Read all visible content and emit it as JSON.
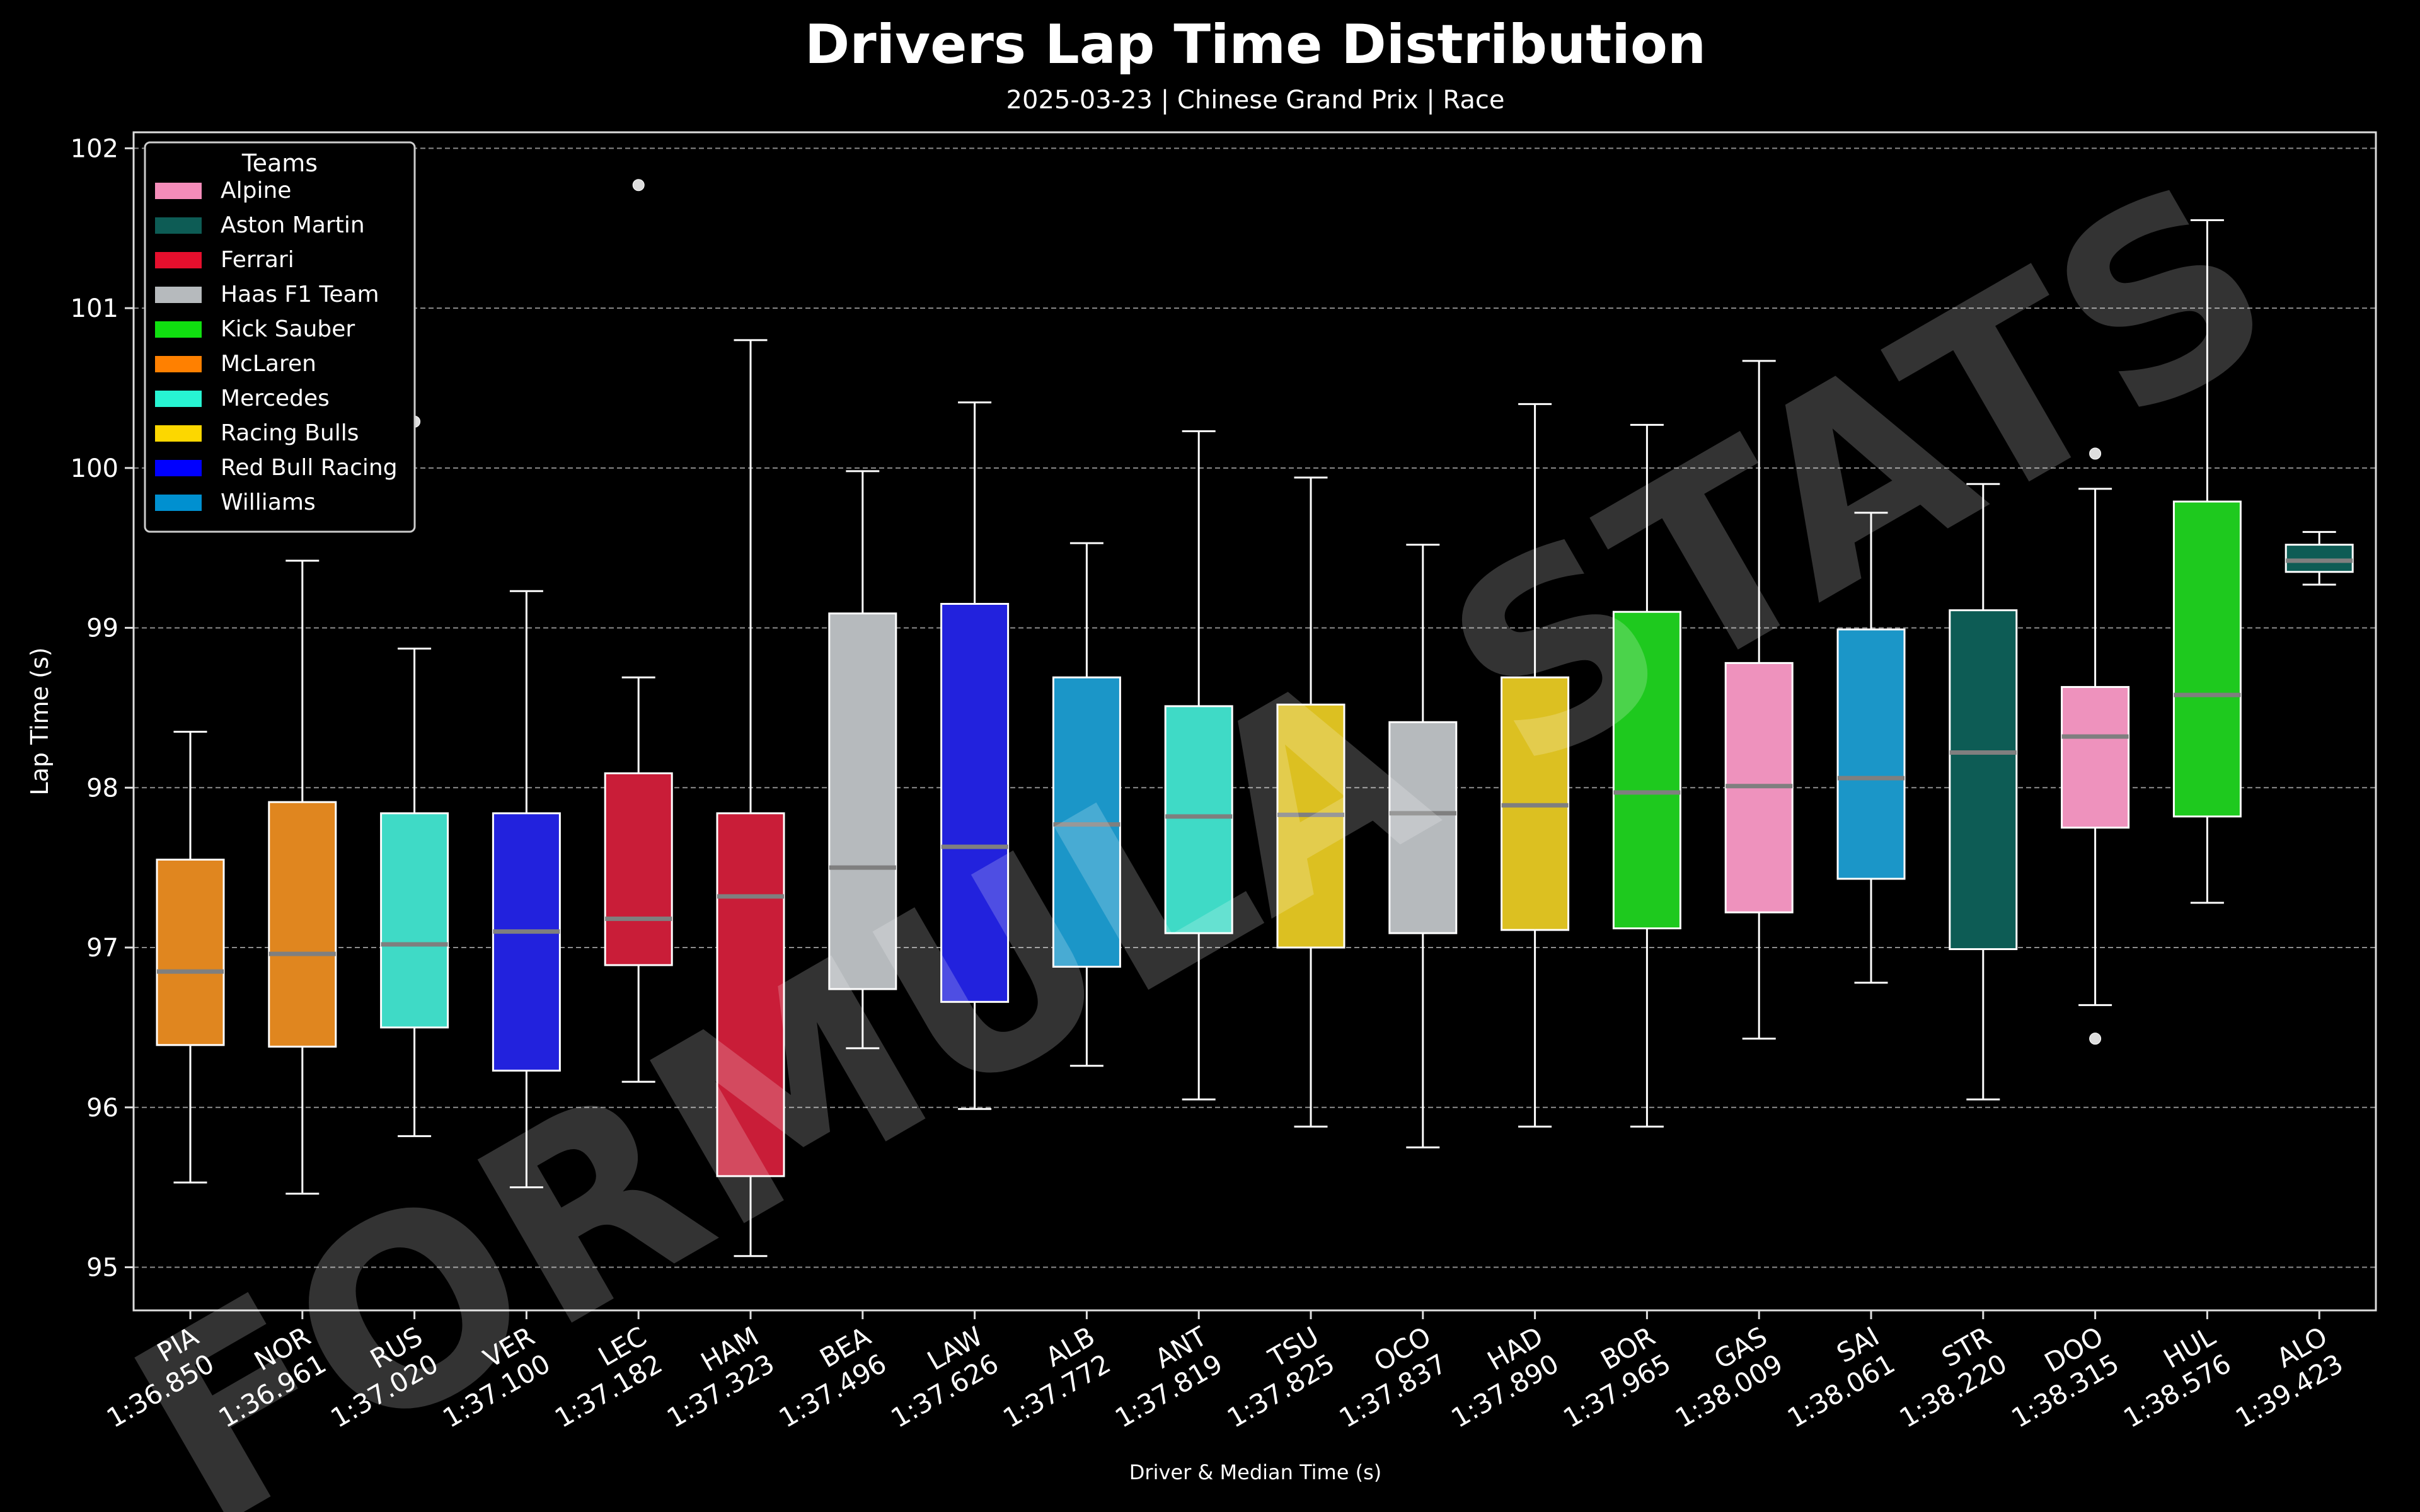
{
  "chart_data": {
    "type": "box",
    "title": "Drivers Lap Time Distribution",
    "subtitle": "2025-03-23 | Chinese Grand Prix | Race",
    "xlabel": "Driver & Median Time (s)",
    "ylabel": "Lap Time (s)",
    "ylim": [
      94.73,
      102.1
    ],
    "yticks": [
      95,
      96,
      97,
      98,
      99,
      100,
      101,
      102
    ],
    "grid": "horizontal dashed",
    "legend_title": "Teams",
    "legend_position": "top-left",
    "teams": [
      {
        "name": "Alpine",
        "color": "#f48cb9"
      },
      {
        "name": "Aston Martin",
        "color": "#0d5c55"
      },
      {
        "name": "Ferrari",
        "color": "#e60f2d"
      },
      {
        "name": "Haas F1 Team",
        "color": "#b6babd"
      },
      {
        "name": "Kick Sauber",
        "color": "#10e010"
      },
      {
        "name": "McLaren",
        "color": "#ff8000"
      },
      {
        "name": "Mercedes",
        "color": "#27f4d2"
      },
      {
        "name": "Racing Bulls",
        "color": "#fcd700"
      },
      {
        "name": "Red Bull Racing",
        "color": "#0000ff"
      },
      {
        "name": "Williams",
        "color": "#0090d0"
      }
    ],
    "drivers": [
      {
        "code": "PIA",
        "median_label": "1:36.850",
        "team": "McLaren",
        "color": "#e0861f",
        "whisker_low": 95.53,
        "q1": 96.39,
        "median": 96.85,
        "q3": 97.55,
        "whisker_high": 98.35,
        "outliers": []
      },
      {
        "code": "NOR",
        "median_label": "1:36.961",
        "team": "McLaren",
        "color": "#e0861f",
        "whisker_low": 95.46,
        "q1": 96.38,
        "median": 96.96,
        "q3": 97.91,
        "whisker_high": 99.42,
        "outliers": []
      },
      {
        "code": "RUS",
        "median_label": "1:37.020",
        "team": "Mercedes",
        "color": "#3fdac6",
        "whisker_low": 95.82,
        "q1": 96.5,
        "median": 97.02,
        "q3": 97.84,
        "whisker_high": 98.87,
        "outliers": [
          100.29
        ]
      },
      {
        "code": "VER",
        "median_label": "1:37.100",
        "team": "Red Bull Racing",
        "color": "#2222dd",
        "whisker_low": 95.5,
        "q1": 96.23,
        "median": 97.1,
        "q3": 97.84,
        "whisker_high": 99.23,
        "outliers": []
      },
      {
        "code": "LEC",
        "median_label": "1:37.182",
        "team": "Ferrari",
        "color": "#c91d38",
        "whisker_low": 96.16,
        "q1": 96.89,
        "median": 97.18,
        "q3": 98.09,
        "whisker_high": 98.69,
        "outliers": [
          101.77
        ]
      },
      {
        "code": "HAM",
        "median_label": "1:37.323",
        "team": "Ferrari",
        "color": "#c91d38",
        "whisker_low": 95.07,
        "q1": 95.57,
        "median": 97.32,
        "q3": 97.84,
        "whisker_high": 100.8,
        "outliers": []
      },
      {
        "code": "BEA",
        "median_label": "1:37.496",
        "team": "Haas F1 Team",
        "color": "#b6babd",
        "whisker_low": 96.37,
        "q1": 96.74,
        "median": 97.5,
        "q3": 99.09,
        "whisker_high": 99.98,
        "outliers": []
      },
      {
        "code": "LAW",
        "median_label": "1:37.626",
        "team": "Racing Bulls",
        "color": "#2222dd",
        "whisker_low": 95.99,
        "q1": 96.66,
        "median": 97.63,
        "q3": 99.15,
        "whisker_high": 100.41,
        "outliers": []
      },
      {
        "code": "ALB",
        "median_label": "1:37.772",
        "team": "Williams",
        "color": "#1b96c8",
        "whisker_low": 96.26,
        "q1": 96.88,
        "median": 97.77,
        "q3": 98.69,
        "whisker_high": 99.53,
        "outliers": []
      },
      {
        "code": "ANT",
        "median_label": "1:37.819",
        "team": "Mercedes",
        "color": "#3fdac6",
        "whisker_low": 96.05,
        "q1": 97.09,
        "median": 97.82,
        "q3": 98.51,
        "whisker_high": 100.23,
        "outliers": []
      },
      {
        "code": "TSU",
        "median_label": "1:37.825",
        "team": "Racing Bulls",
        "color": "#dcc021",
        "whisker_low": 95.88,
        "q1": 97.0,
        "median": 97.83,
        "q3": 98.52,
        "whisker_high": 99.94,
        "outliers": []
      },
      {
        "code": "OCO",
        "median_label": "1:37.837",
        "team": "Haas F1 Team",
        "color": "#b6babd",
        "whisker_low": 95.75,
        "q1": 97.09,
        "median": 97.84,
        "q3": 98.41,
        "whisker_high": 99.52,
        "outliers": []
      },
      {
        "code": "HAD",
        "median_label": "1:37.890",
        "team": "Racing Bulls",
        "color": "#dcc021",
        "whisker_low": 95.88,
        "q1": 97.11,
        "median": 97.89,
        "q3": 98.69,
        "whisker_high": 100.4,
        "outliers": []
      },
      {
        "code": "BOR",
        "median_label": "1:37.965",
        "team": "Kick Sauber",
        "color": "#1ec91e",
        "whisker_low": 95.88,
        "q1": 97.12,
        "median": 97.97,
        "q3": 99.1,
        "whisker_high": 100.27,
        "outliers": []
      },
      {
        "code": "GAS",
        "median_label": "1:38.009",
        "team": "Alpine",
        "color": "#ee92bd",
        "whisker_low": 96.43,
        "q1": 97.22,
        "median": 98.01,
        "q3": 98.78,
        "whisker_high": 100.67,
        "outliers": []
      },
      {
        "code": "SAI",
        "median_label": "1:38.061",
        "team": "Williams",
        "color": "#1b96c8",
        "whisker_low": 96.78,
        "q1": 97.43,
        "median": 98.06,
        "q3": 98.99,
        "whisker_high": 99.72,
        "outliers": []
      },
      {
        "code": "STR",
        "median_label": "1:38.220",
        "team": "Aston Martin",
        "color": "#0d5c55",
        "whisker_low": 96.05,
        "q1": 96.99,
        "median": 98.22,
        "q3": 99.11,
        "whisker_high": 99.9,
        "outliers": []
      },
      {
        "code": "DOO",
        "median_label": "1:38.315",
        "team": "Alpine",
        "color": "#ee92bd",
        "whisker_low": 96.64,
        "q1": 97.75,
        "median": 98.32,
        "q3": 98.63,
        "whisker_high": 99.87,
        "outliers": [
          100.09,
          96.43
        ]
      },
      {
        "code": "HUL",
        "median_label": "1:38.576",
        "team": "Kick Sauber",
        "color": "#1ec91e",
        "whisker_low": 97.28,
        "q1": 97.82,
        "median": 98.58,
        "q3": 99.79,
        "whisker_high": 101.55,
        "outliers": []
      },
      {
        "code": "ALO",
        "median_label": "1:39.423",
        "team": "Aston Martin",
        "color": "#0d5c55",
        "whisker_low": 99.27,
        "q1": 99.35,
        "median": 99.42,
        "q3": 99.52,
        "whisker_high": 99.6,
        "outliers": []
      }
    ]
  },
  "watermark": "FORMULA STATS"
}
